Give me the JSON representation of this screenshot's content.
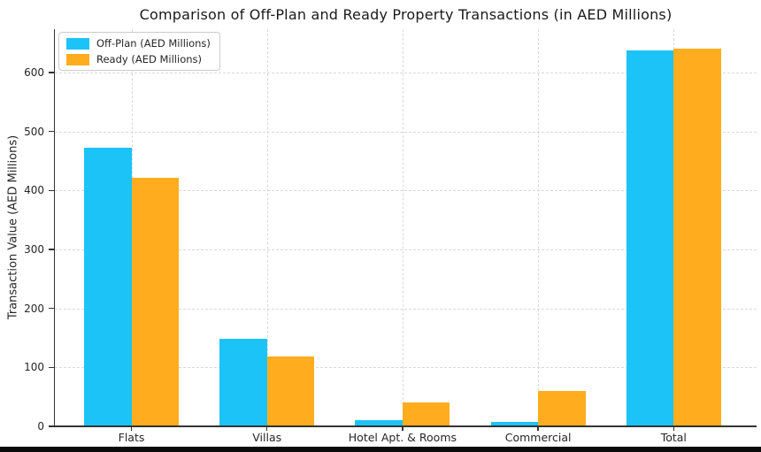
{
  "chart_data": {
    "type": "bar",
    "title": "Comparison of Off-Plan and Ready Property Transactions (in AED Millions)",
    "ylabel": "Transaction Value (AED Millions)",
    "xlabel": "",
    "categories": [
      "Flats",
      "Villas",
      "Hotel Apt. & Rooms",
      "Commercial",
      "Total"
    ],
    "series": [
      {
        "name": "Off-Plan (AED Millions)",
        "color": "#1cc3f7",
        "values": [
          473,
          148,
          10,
          7,
          638
        ]
      },
      {
        "name": "Ready (AED Millions)",
        "color": "#ffad1e",
        "values": [
          422,
          119,
          40,
          60,
          641
        ]
      }
    ],
    "yticks": [
      0,
      100,
      200,
      300,
      400,
      500,
      600
    ],
    "ylim": [
      0,
      673
    ],
    "grid": "dashed, horizontal and vertical",
    "legend_position": "upper left",
    "colors": {
      "grid": "#d9d9d9",
      "spine": "#333333",
      "text": "#262626",
      "background": "#ffffff",
      "bottom_edge": "#0a0a0a"
    }
  }
}
